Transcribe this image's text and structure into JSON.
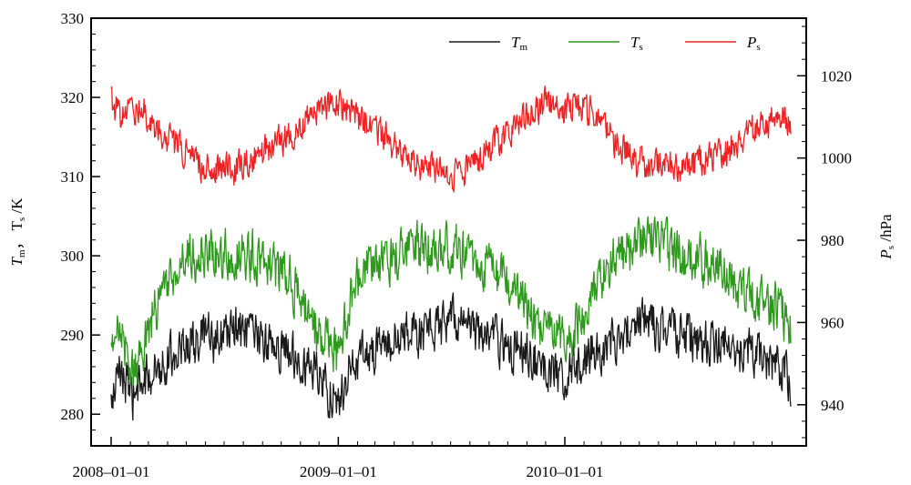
{
  "chart_data": {
    "type": "line",
    "x_start": "2008-01-01",
    "x_end": "2010-12-31",
    "x_tick_labels": [
      {
        "date": "2008-01-01",
        "label": "2008–01–01"
      },
      {
        "date": "2009-01-01",
        "label": "2009–01–01"
      },
      {
        "date": "2010-01-01",
        "label": "2010–01–01"
      }
    ],
    "y_left": {
      "label_parts": [
        {
          "text": "T",
          "sub": "m"
        },
        {
          "text": "， T",
          "sub": "s"
        },
        {
          "text": " /K",
          "sub": ""
        }
      ],
      "ylim": [
        276,
        330
      ],
      "ticks": [
        280,
        290,
        300,
        310,
        320,
        330
      ],
      "tick_labels": [
        "280",
        "290",
        "300",
        "310",
        "320",
        "330"
      ]
    },
    "y_right": {
      "label_parts": [
        {
          "text": "P",
          "sub": "s"
        },
        {
          "text": " /hPa",
          "sub": ""
        }
      ],
      "ylim": [
        930,
        1034
      ],
      "ticks": [
        940,
        960,
        980,
        1000,
        1020
      ],
      "tick_labels": [
        "940",
        "960",
        "980",
        "1000",
        "1020"
      ]
    },
    "legend_position": "top-right",
    "series": [
      {
        "name": "T",
        "name_sub": "m",
        "axis": "left",
        "color": "#1a1a1a",
        "points": [
          [
            "2008-01-01",
            281
          ],
          [
            "2008-01-16",
            286
          ],
          [
            "2008-02-01",
            282
          ],
          [
            "2008-02-16",
            283
          ],
          [
            "2008-03-01",
            285
          ],
          [
            "2008-03-16",
            286
          ],
          [
            "2008-04-01",
            287
          ],
          [
            "2008-04-16",
            288
          ],
          [
            "2008-05-01",
            289
          ],
          [
            "2008-05-16",
            289
          ],
          [
            "2008-06-01",
            290
          ],
          [
            "2008-06-16",
            289
          ],
          [
            "2008-07-01",
            290
          ],
          [
            "2008-07-16",
            291
          ],
          [
            "2008-08-01",
            290
          ],
          [
            "2008-08-16",
            290
          ],
          [
            "2008-09-01",
            289
          ],
          [
            "2008-09-16",
            289
          ],
          [
            "2008-10-01",
            288
          ],
          [
            "2008-10-16",
            288
          ],
          [
            "2008-11-01",
            287
          ],
          [
            "2008-11-16",
            286
          ],
          [
            "2008-12-01",
            285
          ],
          [
            "2008-12-16",
            283
          ],
          [
            "2009-01-01",
            281
          ],
          [
            "2009-01-16",
            285
          ],
          [
            "2009-02-01",
            287
          ],
          [
            "2009-02-16",
            288
          ],
          [
            "2009-03-01",
            288
          ],
          [
            "2009-03-16",
            289
          ],
          [
            "2009-04-01",
            289
          ],
          [
            "2009-04-16",
            290
          ],
          [
            "2009-05-01",
            290
          ],
          [
            "2009-05-16",
            290
          ],
          [
            "2009-06-01",
            291
          ],
          [
            "2009-06-16",
            291
          ],
          [
            "2009-07-01",
            292
          ],
          [
            "2009-07-16",
            292
          ],
          [
            "2009-08-01",
            291
          ],
          [
            "2009-08-16",
            290
          ],
          [
            "2009-09-01",
            290
          ],
          [
            "2009-09-16",
            289
          ],
          [
            "2009-10-01",
            289
          ],
          [
            "2009-10-16",
            288
          ],
          [
            "2009-11-01",
            288
          ],
          [
            "2009-11-16",
            287
          ],
          [
            "2009-12-01",
            286
          ],
          [
            "2009-12-16",
            285
          ],
          [
            "2010-01-01",
            285
          ],
          [
            "2010-01-16",
            286
          ],
          [
            "2010-02-01",
            287
          ],
          [
            "2010-02-16",
            288
          ],
          [
            "2010-03-01",
            288
          ],
          [
            "2010-03-16",
            289
          ],
          [
            "2010-04-01",
            290
          ],
          [
            "2010-04-16",
            291
          ],
          [
            "2010-05-01",
            292
          ],
          [
            "2010-05-16",
            292
          ],
          [
            "2010-06-01",
            291
          ],
          [
            "2010-06-16",
            291
          ],
          [
            "2010-07-01",
            290
          ],
          [
            "2010-07-16",
            290
          ],
          [
            "2010-08-01",
            289
          ],
          [
            "2010-08-16",
            289
          ],
          [
            "2010-09-01",
            289
          ],
          [
            "2010-09-16",
            289
          ],
          [
            "2010-10-01",
            288
          ],
          [
            "2010-10-16",
            288
          ],
          [
            "2010-11-01",
            288
          ],
          [
            "2010-11-16",
            287
          ],
          [
            "2010-12-01",
            286
          ],
          [
            "2010-12-16",
            286
          ],
          [
            "2010-12-31",
            284
          ]
        ]
      },
      {
        "name": "T",
        "name_sub": "s",
        "axis": "left",
        "color": "#2e9a1c",
        "points": [
          [
            "2008-01-01",
            287
          ],
          [
            "2008-01-16",
            292
          ],
          [
            "2008-02-01",
            285
          ],
          [
            "2008-02-16",
            287
          ],
          [
            "2008-03-01",
            291
          ],
          [
            "2008-03-16",
            294
          ],
          [
            "2008-04-01",
            296
          ],
          [
            "2008-04-16",
            298
          ],
          [
            "2008-05-01",
            300
          ],
          [
            "2008-05-16",
            300
          ],
          [
            "2008-06-01",
            300
          ],
          [
            "2008-06-16",
            300
          ],
          [
            "2008-07-01",
            300
          ],
          [
            "2008-07-16",
            301
          ],
          [
            "2008-08-01",
            300
          ],
          [
            "2008-08-16",
            300
          ],
          [
            "2008-09-01",
            299
          ],
          [
            "2008-09-16",
            299
          ],
          [
            "2008-10-01",
            298
          ],
          [
            "2008-10-16",
            297
          ],
          [
            "2008-11-01",
            294
          ],
          [
            "2008-11-16",
            292
          ],
          [
            "2008-12-01",
            290
          ],
          [
            "2008-12-16",
            289
          ],
          [
            "2009-01-01",
            287
          ],
          [
            "2009-01-16",
            293
          ],
          [
            "2009-02-01",
            297
          ],
          [
            "2009-02-16",
            298
          ],
          [
            "2009-03-01",
            298
          ],
          [
            "2009-03-16",
            299
          ],
          [
            "2009-04-01",
            300
          ],
          [
            "2009-04-16",
            300
          ],
          [
            "2009-05-01",
            301
          ],
          [
            "2009-05-16",
            301
          ],
          [
            "2009-06-01",
            301
          ],
          [
            "2009-06-16",
            301
          ],
          [
            "2009-07-01",
            301
          ],
          [
            "2009-07-16",
            301
          ],
          [
            "2009-08-01",
            300
          ],
          [
            "2009-08-16",
            299
          ],
          [
            "2009-09-01",
            298
          ],
          [
            "2009-09-16",
            297
          ],
          [
            "2009-10-01",
            296
          ],
          [
            "2009-10-16",
            295
          ],
          [
            "2009-11-01",
            293
          ],
          [
            "2009-11-16",
            291
          ],
          [
            "2009-12-01",
            290
          ],
          [
            "2009-12-16",
            290
          ],
          [
            "2010-01-01",
            290
          ],
          [
            "2010-01-16",
            291
          ],
          [
            "2010-02-01",
            293
          ],
          [
            "2010-02-16",
            295
          ],
          [
            "2010-03-01",
            297
          ],
          [
            "2010-03-16",
            299
          ],
          [
            "2010-04-01",
            300
          ],
          [
            "2010-04-16",
            301
          ],
          [
            "2010-05-01",
            302
          ],
          [
            "2010-05-16",
            302
          ],
          [
            "2010-06-01",
            302
          ],
          [
            "2010-06-16",
            301
          ],
          [
            "2010-07-01",
            301
          ],
          [
            "2010-07-16",
            300
          ],
          [
            "2010-08-01",
            300
          ],
          [
            "2010-08-16",
            299
          ],
          [
            "2010-09-01",
            299
          ],
          [
            "2010-09-16",
            298
          ],
          [
            "2010-10-01",
            297
          ],
          [
            "2010-10-16",
            296
          ],
          [
            "2010-11-01",
            295
          ],
          [
            "2010-11-16",
            294
          ],
          [
            "2010-12-01",
            294
          ],
          [
            "2010-12-16",
            293
          ],
          [
            "2010-12-31",
            291
          ]
        ]
      },
      {
        "name": "P",
        "name_sub": "s",
        "axis": "right",
        "color": "#ee2222",
        "points": [
          [
            "2008-01-01",
            1014
          ],
          [
            "2008-01-16",
            1010
          ],
          [
            "2008-02-01",
            1011
          ],
          [
            "2008-02-16",
            1013
          ],
          [
            "2008-03-01",
            1010
          ],
          [
            "2008-03-16",
            1007
          ],
          [
            "2008-04-01",
            1005
          ],
          [
            "2008-04-16",
            1003
          ],
          [
            "2008-05-01",
            1001
          ],
          [
            "2008-05-16",
            999
          ],
          [
            "2008-06-01",
            998
          ],
          [
            "2008-06-16",
            998
          ],
          [
            "2008-07-01",
            998
          ],
          [
            "2008-07-16",
            997
          ],
          [
            "2008-08-01",
            999
          ],
          [
            "2008-08-16",
            1000
          ],
          [
            "2008-09-01",
            1001
          ],
          [
            "2008-09-16",
            1003
          ],
          [
            "2008-10-01",
            1004
          ],
          [
            "2008-10-16",
            1006
          ],
          [
            "2008-11-01",
            1008
          ],
          [
            "2008-11-16",
            1010
          ],
          [
            "2008-12-01",
            1012
          ],
          [
            "2008-12-16",
            1013
          ],
          [
            "2009-01-01",
            1014
          ],
          [
            "2009-01-16",
            1012
          ],
          [
            "2009-02-01",
            1010
          ],
          [
            "2009-02-16",
            1008
          ],
          [
            "2009-03-01",
            1007
          ],
          [
            "2009-03-16",
            1005
          ],
          [
            "2009-04-01",
            1003
          ],
          [
            "2009-04-16",
            1001
          ],
          [
            "2009-05-01",
            999
          ],
          [
            "2009-05-16",
            998
          ],
          [
            "2009-06-01",
            998
          ],
          [
            "2009-06-16",
            996
          ],
          [
            "2009-07-01",
            995
          ],
          [
            "2009-07-16",
            996
          ],
          [
            "2009-08-01",
            998
          ],
          [
            "2009-08-16",
            1000
          ],
          [
            "2009-09-01",
            1002
          ],
          [
            "2009-09-16",
            1004
          ],
          [
            "2009-10-01",
            1006
          ],
          [
            "2009-10-16",
            1008
          ],
          [
            "2009-11-01",
            1010
          ],
          [
            "2009-11-16",
            1012
          ],
          [
            "2009-12-01",
            1013
          ],
          [
            "2009-12-16",
            1012
          ],
          [
            "2010-01-01",
            1011
          ],
          [
            "2010-01-16",
            1013
          ],
          [
            "2010-02-01",
            1012
          ],
          [
            "2010-02-16",
            1011
          ],
          [
            "2010-03-01",
            1008
          ],
          [
            "2010-03-16",
            1005
          ],
          [
            "2010-04-01",
            1003
          ],
          [
            "2010-04-16",
            1001
          ],
          [
            "2010-05-01",
            999
          ],
          [
            "2010-05-16",
            998
          ],
          [
            "2010-06-01",
            998
          ],
          [
            "2010-06-16",
            998
          ],
          [
            "2010-07-01",
            998
          ],
          [
            "2010-07-16",
            998
          ],
          [
            "2010-08-01",
            999
          ],
          [
            "2010-08-16",
            1000
          ],
          [
            "2010-09-01",
            1001
          ],
          [
            "2010-09-16",
            1002
          ],
          [
            "2010-10-01",
            1003
          ],
          [
            "2010-10-16",
            1005
          ],
          [
            "2010-11-01",
            1007
          ],
          [
            "2010-11-16",
            1008
          ],
          [
            "2010-12-01",
            1009
          ],
          [
            "2010-12-16",
            1010
          ],
          [
            "2010-12-31",
            1009
          ]
        ]
      }
    ]
  }
}
